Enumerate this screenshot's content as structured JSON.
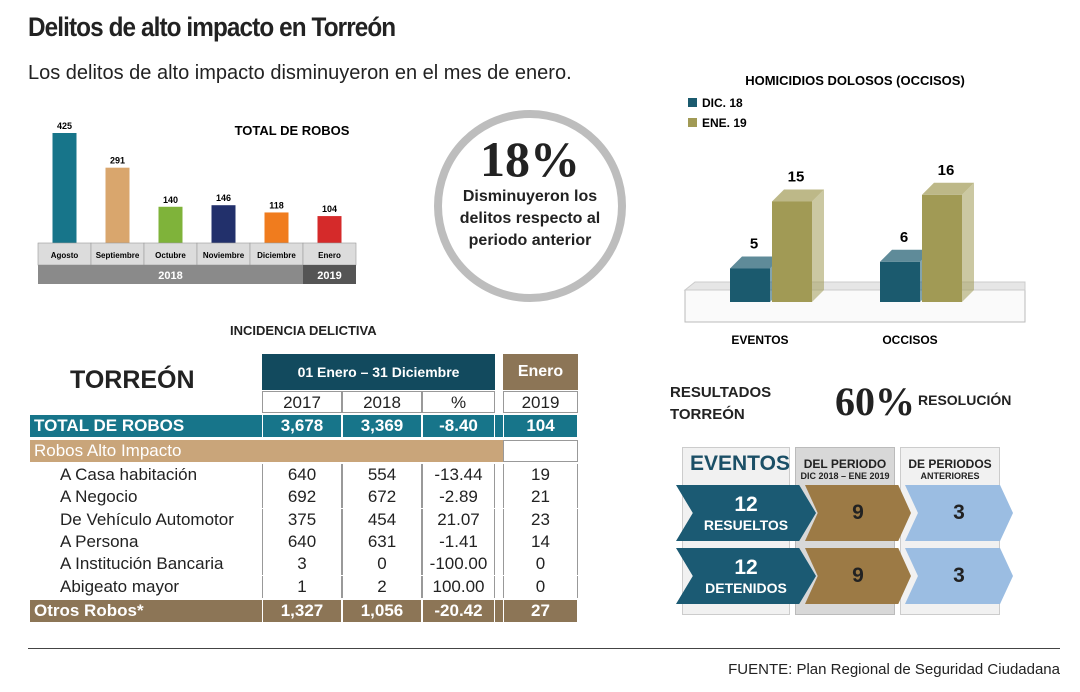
{
  "title": "Delitos de alto impacto en Torreón",
  "subtitle": "Los delitos de alto impacto disminuyeron en el mes de enero.",
  "highlight": {
    "value": "18%",
    "text": "Disminuyeron los delitos respecto al periodo anterior"
  },
  "chart_data": [
    {
      "type": "bar",
      "title": "TOTAL DE ROBOS",
      "categories": [
        "Agosto",
        "Septiembre",
        "Octubre",
        "Noviembre",
        "Diciembre",
        "Enero"
      ],
      "values": [
        425,
        291,
        140,
        146,
        118,
        104
      ],
      "colors": [
        "#17758a",
        "#d9a66d",
        "#7fb33a",
        "#22306b",
        "#f07c1e",
        "#d52a2a"
      ],
      "groups": [
        {
          "label": "2018",
          "span": 5
        },
        {
          "label": "2019",
          "span": 1
        }
      ]
    },
    {
      "type": "bar",
      "title": "HOMICIDIOS DOLOSOS (OCCISOS)",
      "categories": [
        "EVENTOS",
        "OCCISOS"
      ],
      "series": [
        {
          "name": "DIC. 18",
          "values": [
            5,
            6
          ],
          "color": "#1b5a6e"
        },
        {
          "name": "ENE. 19",
          "values": [
            15,
            16
          ],
          "color": "#a19a55"
        }
      ],
      "legend": "top-left",
      "style": "3d"
    }
  ],
  "table": {
    "title": "INCIDENCIA DELICTIVA",
    "place": "TORREÓN",
    "period": "01 Enero – 31 Diciembre",
    "month": "Enero",
    "years": [
      "2017",
      "2018",
      "%",
      "2019"
    ],
    "total": {
      "label": "TOTAL DE ROBOS",
      "values": [
        "3,678",
        "3,369",
        "-8.40",
        "104"
      ]
    },
    "section": "Robos Alto Impacto",
    "rows": [
      {
        "label": "A Casa habitación",
        "values": [
          "640",
          "554",
          "-13.44",
          "19"
        ]
      },
      {
        "label": "A Negocio",
        "values": [
          "692",
          "672",
          "-2.89",
          "21"
        ]
      },
      {
        "label": "De Vehículo Automotor",
        "values": [
          "375",
          "454",
          "21.07",
          "23"
        ]
      },
      {
        "label": "A Persona",
        "values": [
          "640",
          "631",
          "-1.41",
          "14"
        ]
      },
      {
        "label": "A Institución Bancaria",
        "values": [
          "3",
          "0",
          "-100.00",
          "0"
        ]
      },
      {
        "label": "Abigeato mayor",
        "values": [
          "1",
          "2",
          "100.00",
          "0"
        ]
      }
    ],
    "other": {
      "label": "Otros Robos*",
      "values": [
        "1,327",
        "1,056",
        "-20.42",
        "27"
      ]
    }
  },
  "results": {
    "title1": "RESULTADOS",
    "title2": "TORREÓN",
    "pct": "60%",
    "pct_label": "RESOLUCIÓN",
    "col1": "EVENTOS",
    "col2": "DEL PERIODO",
    "col2_sub": "DIC 2018 – ENE 2019",
    "col3": "DE PERIODOS",
    "col3_sub": "ANTERIORES",
    "rows": [
      {
        "total": "12",
        "label": "RESUELTOS",
        "period": "9",
        "previous": "3"
      },
      {
        "total": "12",
        "label": "DETENIDOS",
        "period": "9",
        "previous": "3"
      }
    ]
  },
  "source": "FUENTE: Plan Regional de Seguridad Ciudadana"
}
